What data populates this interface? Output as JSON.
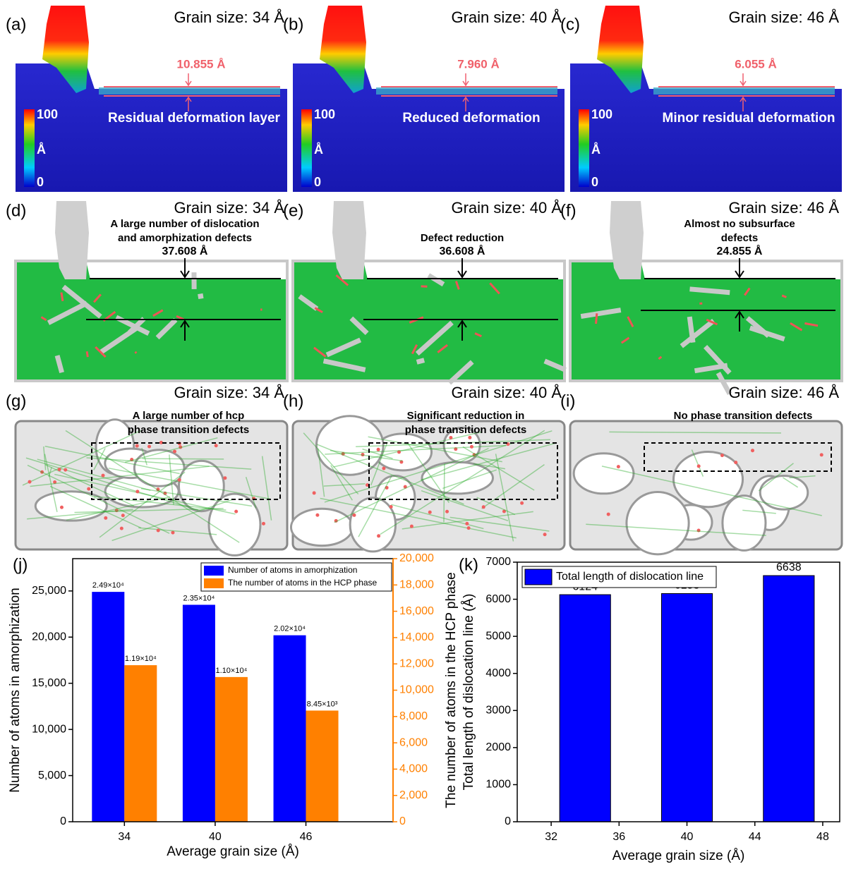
{
  "top_row": [
    {
      "label": "(a)",
      "grain_size": "Grain size: 34 Å",
      "measurement": "10.855 Å",
      "caption": "Residual deformation layer",
      "colorbar": {
        "max": 100,
        "unit": "Å",
        "min": 0
      }
    },
    {
      "label": "(b)",
      "grain_size": "Grain size: 40 Å",
      "measurement": "7.960 Å",
      "caption": "Reduced deformation",
      "colorbar": {
        "max": 100,
        "unit": "Å",
        "min": 0
      }
    },
    {
      "label": "(c)",
      "grain_size": "Grain size: 46 Å",
      "measurement": "6.055 Å",
      "caption": "Minor residual deformation",
      "colorbar": {
        "max": 100,
        "unit": "Å",
        "min": 0
      }
    }
  ],
  "middle_row": [
    {
      "label": "(d)",
      "grain_size": "Grain size: 34 Å",
      "annotation": [
        "A large number of dislocation",
        "and amorphization defects"
      ],
      "measurement": "37.608 Å"
    },
    {
      "label": "(e)",
      "grain_size": "Grain size: 40 Å",
      "annotation": [
        "Defect reduction"
      ],
      "measurement": "36.608 Å"
    },
    {
      "label": "(f)",
      "grain_size": "Grain size: 46 Å",
      "annotation": [
        "Almost no subsurface",
        "defects"
      ],
      "measurement": "24.855 Å"
    }
  ],
  "bottom_row": [
    {
      "label": "(g)",
      "grain_size": "Grain size: 34 Å",
      "annotation": [
        "A large number of hcp",
        "phase transition defects"
      ]
    },
    {
      "label": "(h)",
      "grain_size": "Grain size: 40 Å",
      "annotation": [
        "Significant reduction in",
        "phase transition defects"
      ]
    },
    {
      "label": "(i)",
      "grain_size": "Grain size: 46 Å",
      "annotation": [
        "No phase transition defects"
      ]
    }
  ],
  "chart_data": [
    {
      "type": "bar",
      "panel_label": "(j)",
      "x_label": "Average grain size (Å)",
      "y_label": "Number of atoms in amorphization",
      "y2_label": "The number of atoms in the HCP phase",
      "categories": [
        "34",
        "40",
        "46"
      ],
      "series": [
        {
          "name": "Number of atoms in amorphization",
          "color": "#0000ff",
          "values": [
            24900,
            23500,
            20200
          ],
          "value_labels": [
            "2.49×10⁴",
            "2.35×10⁴",
            "2.02×10⁴"
          ]
        },
        {
          "name": "The number of atoms in the HCP phase",
          "color": "#ff8000",
          "axis": "y2",
          "values": [
            11900,
            11000,
            8450
          ],
          "value_labels": [
            "1.19×10⁴",
            "1.10×10⁴",
            "8.45×10³"
          ]
        }
      ],
      "ylim": [
        0,
        28500
      ],
      "yticks": [
        0,
        {
          "value": 5000,
          "label": "5,000"
        },
        {
          "value": 10000,
          "label": "10,000"
        },
        {
          "value": 15000,
          "label": "15,000"
        },
        {
          "value": 20000,
          "label": "20,000"
        },
        {
          "value": 25000,
          "label": "25,000"
        }
      ],
      "y2lim": [
        0,
        20000
      ],
      "y2ticks": [
        0,
        {
          "value": 2000,
          "label": "2,000"
        },
        {
          "value": 4000,
          "label": "4,000"
        },
        {
          "value": 6000,
          "label": "6,000"
        },
        {
          "value": 8000,
          "label": "8,000"
        },
        {
          "value": 10000,
          "label": "10,000"
        },
        {
          "value": 12000,
          "label": "12,000"
        },
        {
          "value": 14000,
          "label": "14,000"
        },
        {
          "value": 16000,
          "label": "16,000"
        },
        {
          "value": 18000,
          "label": "18,000"
        },
        {
          "value": 20000,
          "label": "20,000"
        }
      ],
      "legend": "upper right"
    },
    {
      "type": "bar",
      "panel_label": "(k)",
      "x_label": "Average grain size (Å)",
      "y_label": "Total length of dislocation line (Å)",
      "x": [
        34,
        40,
        46
      ],
      "series": [
        {
          "name": "Total length of dislocation line",
          "color": "#0000ff",
          "values": [
            6124,
            6153,
            6638
          ]
        }
      ],
      "xlim": [
        30,
        49
      ],
      "xticks": [
        32,
        36,
        40,
        44,
        48
      ],
      "ylim": [
        0,
        7000
      ],
      "yticks": [
        0,
        1000,
        2000,
        3000,
        4000,
        5000,
        6000,
        7000
      ],
      "legend": "upper left"
    }
  ]
}
